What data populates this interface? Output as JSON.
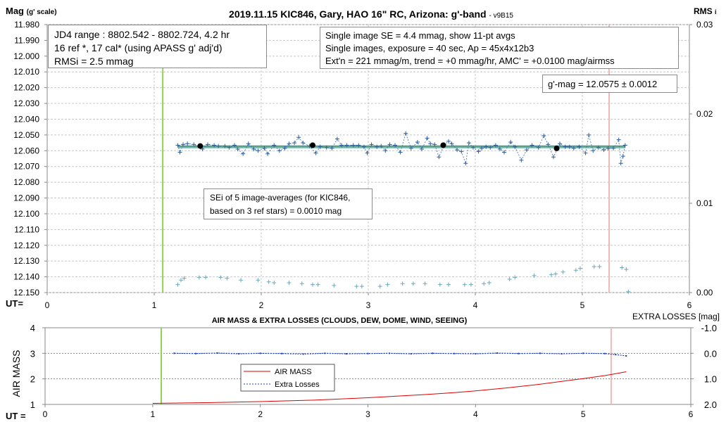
{
  "chart_data": [
    {
      "type": "scatter",
      "title": "2019.11.15 KIC846, Gary, HAO 16\" RC, Arizona: g'-band",
      "title_suffix": "- v9B15",
      "ylabel": "Mag",
      "ylabel_suffix": "(g' scale)",
      "y2label": "RMS",
      "y2label_suffix": "i",
      "xlabel": "UT=",
      "xlim": [
        0,
        6
      ],
      "ylim": [
        12.15,
        11.98
      ],
      "y2lim": [
        0.0,
        0.03
      ],
      "grid": true,
      "x_ticks": [
        "0",
        "1",
        "2",
        "3",
        "4",
        "5",
        "6"
      ],
      "y_ticks": [
        "11.980",
        "11.990",
        "12.000",
        "12.010",
        "12.020",
        "12.030",
        "12.040",
        "12.050",
        "12.060",
        "12.070",
        "12.080",
        "12.090",
        "12.100",
        "12.110",
        "12.120",
        "12.130",
        "12.140",
        "12.150"
      ],
      "y2_ticks": [
        "0.03",
        "0.02",
        "0.01",
        "0.00"
      ],
      "vlines": [
        {
          "x": 1.08,
          "color": "#92d050"
        },
        {
          "x": 5.25,
          "color": "#f4b8b8"
        }
      ],
      "fit_mag": 12.0575,
      "averages": [
        [
          1.43,
          12.057
        ],
        [
          2.48,
          12.0565
        ],
        [
          3.7,
          12.0565
        ],
        [
          4.76,
          12.0585
        ]
      ],
      "single_images": [
        [
          1.22,
          12.0565
        ],
        [
          1.24,
          12.061
        ],
        [
          1.27,
          12.056
        ],
        [
          1.31,
          12.0555
        ],
        [
          1.37,
          12.056
        ],
        [
          1.45,
          12.059
        ],
        [
          1.5,
          12.056
        ],
        [
          1.56,
          12.0565
        ],
        [
          1.6,
          12.057
        ],
        [
          1.66,
          12.057
        ],
        [
          1.7,
          12.058
        ],
        [
          1.75,
          12.0565
        ],
        [
          1.78,
          12.059
        ],
        [
          1.83,
          12.062
        ],
        [
          1.88,
          12.0555
        ],
        [
          1.93,
          12.059
        ],
        [
          1.97,
          12.06
        ],
        [
          2.03,
          12.0585
        ],
        [
          2.06,
          12.062
        ],
        [
          2.12,
          12.0565
        ],
        [
          2.17,
          12.06
        ],
        [
          2.22,
          12.0585
        ],
        [
          2.26,
          12.0555
        ],
        [
          2.31,
          12.055
        ],
        [
          2.35,
          12.0515
        ],
        [
          2.39,
          12.055
        ],
        [
          2.45,
          12.057
        ],
        [
          2.51,
          12.0615
        ],
        [
          2.55,
          12.0575
        ],
        [
          2.61,
          12.058
        ],
        [
          2.66,
          12.0585
        ],
        [
          2.71,
          12.0525
        ],
        [
          2.75,
          12.0565
        ],
        [
          2.8,
          12.0565
        ],
        [
          2.86,
          12.0565
        ],
        [
          2.91,
          12.0565
        ],
        [
          2.96,
          12.0575
        ],
        [
          2.99,
          12.0615
        ],
        [
          3.03,
          12.056
        ],
        [
          3.08,
          12.0575
        ],
        [
          3.12,
          12.057
        ],
        [
          3.16,
          12.06
        ],
        [
          3.2,
          12.056
        ],
        [
          3.25,
          12.0565
        ],
        [
          3.3,
          12.061
        ],
        [
          3.35,
          12.049
        ],
        [
          3.4,
          12.0585
        ],
        [
          3.46,
          12.0545
        ],
        [
          3.5,
          12.059
        ],
        [
          3.55,
          12.052
        ],
        [
          3.58,
          12.0555
        ],
        [
          3.62,
          12.056
        ],
        [
          3.66,
          12.064
        ],
        [
          3.71,
          12.056
        ],
        [
          3.75,
          12.054
        ],
        [
          3.78,
          12.0555
        ],
        [
          3.83,
          12.0595
        ],
        [
          3.87,
          12.0605
        ],
        [
          3.91,
          12.068
        ],
        [
          3.94,
          12.055
        ],
        [
          3.98,
          12.058
        ],
        [
          4.03,
          12.0605
        ],
        [
          4.06,
          12.0585
        ],
        [
          4.1,
          12.0575
        ],
        [
          4.14,
          12.058
        ],
        [
          4.19,
          12.0565
        ],
        [
          4.23,
          12.059
        ],
        [
          4.27,
          12.061
        ],
        [
          4.33,
          12.0545
        ],
        [
          4.37,
          12.0575
        ],
        [
          4.43,
          12.066
        ],
        [
          4.48,
          12.0595
        ],
        [
          4.53,
          12.0565
        ],
        [
          4.59,
          12.058
        ],
        [
          4.64,
          12.0505
        ],
        [
          4.68,
          12.056
        ],
        [
          4.73,
          12.064
        ],
        [
          4.79,
          12.0555
        ],
        [
          4.84,
          12.0575
        ],
        [
          4.88,
          12.0575
        ],
        [
          4.92,
          12.0585
        ],
        [
          4.97,
          12.0575
        ],
        [
          5.03,
          12.0615
        ],
        [
          5.06,
          12.05
        ],
        [
          5.1,
          12.06
        ],
        [
          5.15,
          12.058
        ],
        [
          5.2,
          12.0595
        ],
        [
          5.24,
          12.0585
        ],
        [
          5.29,
          12.0585
        ],
        [
          5.34,
          12.053
        ],
        [
          5.36,
          12.068
        ],
        [
          5.38,
          12.0635
        ],
        [
          5.4,
          12.0565
        ]
      ],
      "rms_points": [
        [
          1.22,
          0.0009
        ],
        [
          1.25,
          0.0014
        ],
        [
          1.28,
          0.0016
        ],
        [
          1.42,
          0.0017
        ],
        [
          1.48,
          0.0017
        ],
        [
          1.62,
          0.0017
        ],
        [
          1.68,
          0.0016
        ],
        [
          1.81,
          0.0014
        ],
        [
          1.97,
          0.0014
        ],
        [
          2.07,
          0.0012
        ],
        [
          2.12,
          0.0011
        ],
        [
          2.26,
          0.0011
        ],
        [
          2.38,
          0.001
        ],
        [
          2.48,
          0.0009
        ],
        [
          2.53,
          0.0009
        ],
        [
          2.68,
          0.0008
        ],
        [
          2.89,
          0.0007
        ],
        [
          2.94,
          0.0007
        ],
        [
          3.11,
          0.0007
        ],
        [
          3.18,
          0.0009
        ],
        [
          3.32,
          0.001
        ],
        [
          3.42,
          0.001
        ],
        [
          3.53,
          0.001
        ],
        [
          3.67,
          0.0009
        ],
        [
          3.75,
          0.0009
        ],
        [
          3.9,
          0.0009
        ],
        [
          3.96,
          0.0009
        ],
        [
          4.08,
          0.001
        ],
        [
          4.13,
          0.0011
        ],
        [
          4.32,
          0.0015
        ],
        [
          4.37,
          0.0017
        ],
        [
          4.55,
          0.0019
        ],
        [
          4.71,
          0.002
        ],
        [
          4.75,
          0.0021
        ],
        [
          4.82,
          0.0023
        ],
        [
          4.94,
          0.0025
        ],
        [
          4.98,
          0.0027
        ],
        [
          5.11,
          0.0029
        ],
        [
          5.16,
          0.0029
        ],
        [
          5.37,
          0.0028
        ],
        [
          5.41,
          0.0026
        ],
        [
          5.43,
          0.0001
        ]
      ],
      "annotations": {
        "box1": [
          "JD4 range : 8802.542 - 8802.724,  4.2  hr",
          "16 ref *, 17 cal* (using APASS g' adj'd)",
          "RMSi = 2.5 mmag"
        ],
        "box2": [
          "Single image SE = 4.4 mmag, show  11-pt avgs",
          "Single images, exposure = 40 sec, Ap = 45x4x12b3",
          "Ext'n = 221 mmag/m, trend =  +0 mmag/hr, AMC' = +0.0100 mag/airmss"
        ],
        "box3": "g'-mag = 12.0575 ± 0.0012",
        "box4": [
          "SEi of 5 image-averages (for KIC846,",
          "based on 3 ref stars) = 0.0010 mag"
        ]
      }
    },
    {
      "type": "line",
      "title": "AIR MASS & EXTRA LOSSES (CLOUDS, DEW, DOME, WIND, SEEING)",
      "ylabel": "AIR MASS",
      "y2label": "EXTRA LOSSES [mag]",
      "xlabel": "UT =",
      "xlim": [
        0,
        6
      ],
      "ylim": [
        1,
        4
      ],
      "y2lim": [
        2.0,
        -1.0
      ],
      "grid": true,
      "x_ticks": [
        "0",
        "1",
        "2",
        "3",
        "4",
        "5",
        "6"
      ],
      "y_ticks": [
        "4",
        "3",
        "2",
        "1"
      ],
      "y2_ticks": [
        "-1.0",
        "0.0",
        "1.0",
        "2.0"
      ],
      "vlines": [
        {
          "x": 1.08,
          "color": "#92d050"
        },
        {
          "x": 5.26,
          "color": "#f4b8b8"
        }
      ],
      "legend": [
        "AIR MASS",
        "Extra Losses"
      ],
      "series": [
        {
          "name": "AIR MASS",
          "color": "#e00000",
          "x": [
            1.0,
            1.5,
            2.0,
            2.5,
            3.0,
            3.5,
            3.8,
            4.0,
            4.3,
            4.6,
            4.8,
            5.0,
            5.1,
            5.2,
            5.3,
            5.4
          ],
          "values": [
            1.04,
            1.07,
            1.11,
            1.17,
            1.26,
            1.38,
            1.46,
            1.53,
            1.65,
            1.79,
            1.9,
            2.01,
            2.07,
            2.13,
            2.2,
            2.28
          ]
        },
        {
          "name": "Extra Losses",
          "color": "#1f3fbf",
          "x": [
            1.2,
            1.4,
            1.6,
            1.8,
            2.0,
            2.2,
            2.4,
            2.6,
            2.8,
            3.0,
            3.2,
            3.4,
            3.6,
            3.8,
            4.0,
            4.2,
            4.4,
            4.6,
            4.8,
            5.0,
            5.2,
            5.3,
            5.4
          ],
          "values": [
            0.0,
            0.01,
            -0.01,
            0.02,
            0.0,
            0.01,
            0.03,
            0.0,
            0.02,
            0.01,
            0.0,
            0.02,
            0.0,
            0.01,
            0.02,
            -0.01,
            0.01,
            0.0,
            0.02,
            0.0,
            0.01,
            0.05,
            0.1
          ]
        }
      ]
    }
  ]
}
